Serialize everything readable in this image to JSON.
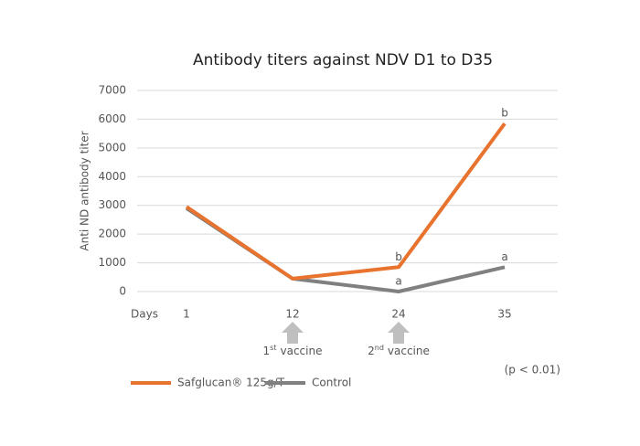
{
  "chart_data": {
    "type": "line",
    "title": "Antibody titers against NDV D1 to D35",
    "y_label": "Anti ND antibody titer",
    "x_label": "Days",
    "categories": [
      "1",
      "12",
      "24",
      "35"
    ],
    "series": [
      {
        "name": "Safglucan® 125g/T",
        "color": "#e8732f",
        "values": [
          2950,
          450,
          850,
          5850
        ],
        "significance": [
          null,
          null,
          "b",
          "b"
        ]
      },
      {
        "name": "Control",
        "color": "#808080",
        "values": [
          2900,
          450,
          0,
          850
        ],
        "significance": [
          null,
          null,
          "a",
          "a"
        ]
      }
    ],
    "annotations": [
      null,
      {
        "number": "1",
        "suffix": "st",
        "text": "vaccine"
      },
      {
        "number": "2",
        "suffix": "nd",
        "text": "vaccine"
      },
      null
    ],
    "note": "(p < 0.01)",
    "ylim": [
      0,
      7000
    ],
    "yticks": [
      0,
      1000,
      2000,
      3000,
      4000,
      5000,
      6000,
      7000
    ],
    "grid": true,
    "legend": "bottom"
  }
}
